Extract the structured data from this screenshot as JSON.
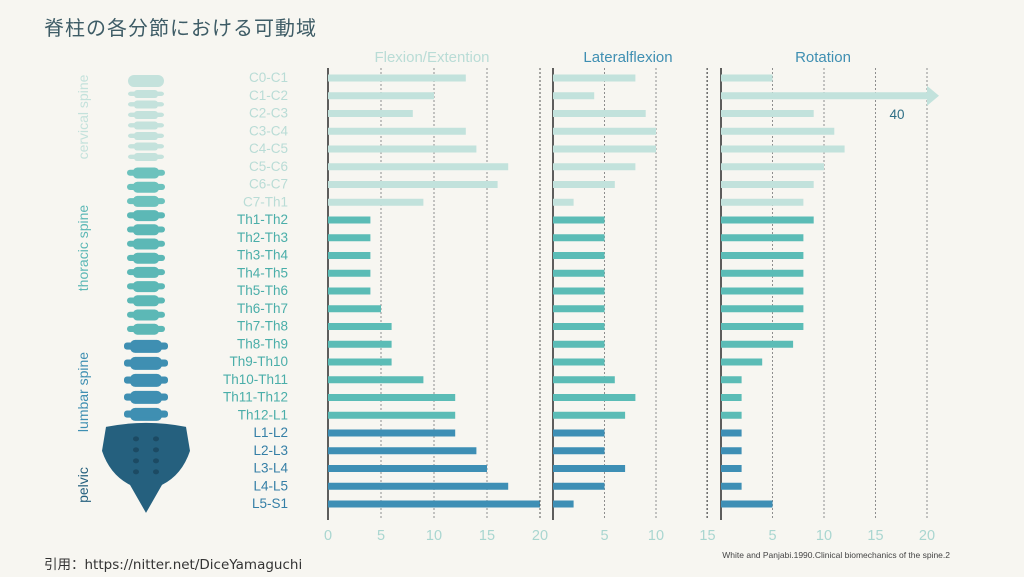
{
  "title": "脊柱の各分節における可動域",
  "citation": "引用：https://nitter.net/DiceYamaguchi",
  "source": "White and Panjabi.1990.Clinical biomechanics of the spine.2",
  "regions": [
    {
      "name": "cervical spine",
      "color": "#c4e2dc"
    },
    {
      "name": "thoracic spine",
      "color": "#5cb8b6"
    },
    {
      "name": "lumbar spine",
      "color": "#3f8fb2"
    },
    {
      "name": "pelvic",
      "color": "#25607e"
    }
  ],
  "colors": {
    "cervical": "#c2e2dc",
    "thoracic": "#5bbcb6",
    "lumbar": "#3e8fb5",
    "axis": "#1c1c1c"
  },
  "chart_data": {
    "type": "bar",
    "categories": [
      "C0-C1",
      "C1-C2",
      "C2-C3",
      "C3-C4",
      "C4-C5",
      "C5-C6",
      "C6-C7",
      "C7-Th1",
      "Th1-Th2",
      "Th2-Th3",
      "Th3-Th4",
      "Th4-Th5",
      "Th5-Th6",
      "Th6-Th7",
      "Th7-Th8",
      "Th8-Th9",
      "Th9-Th10",
      "Th10-Th11",
      "Th11-Th12",
      "Th12-L1",
      "L1-L2",
      "L2-L3",
      "L3-L4",
      "L4-L5",
      "L5-S1"
    ],
    "category_region": [
      "cervical",
      "cervical",
      "cervical",
      "cervical",
      "cervical",
      "cervical",
      "cervical",
      "cervical",
      "thoracic",
      "thoracic",
      "thoracic",
      "thoracic",
      "thoracic",
      "thoracic",
      "thoracic",
      "thoracic",
      "thoracic",
      "thoracic",
      "thoracic",
      "thoracic",
      "lumbar",
      "lumbar",
      "lumbar",
      "lumbar",
      "lumbar"
    ],
    "panels": [
      {
        "title": "Flexion/Extention",
        "xlim": [
          0,
          20
        ],
        "ticks": [
          0,
          5,
          10,
          15,
          20
        ],
        "values": [
          13,
          10,
          8,
          13,
          14,
          17,
          16,
          9,
          4,
          4,
          4,
          4,
          4,
          5,
          6,
          6,
          6,
          9,
          12,
          12,
          12,
          14,
          15,
          17,
          20
        ]
      },
      {
        "title": "Lateralflexion",
        "xlim": [
          0,
          15
        ],
        "ticks": [
          5,
          10,
          15
        ],
        "values": [
          8,
          4,
          9,
          10,
          10,
          8,
          6,
          2,
          5,
          5,
          5,
          5,
          5,
          5,
          5,
          5,
          5,
          6,
          8,
          7,
          5,
          5,
          7,
          5,
          2
        ]
      },
      {
        "title": "Rotation",
        "xlim": [
          0,
          20
        ],
        "ticks": [
          5,
          10,
          15,
          20
        ],
        "values": [
          5,
          40,
          9,
          11,
          12,
          10,
          9,
          8,
          9,
          8,
          8,
          8,
          8,
          8,
          8,
          7,
          4,
          2,
          2,
          2,
          2,
          2,
          2,
          2,
          5
        ],
        "annotation": "40"
      }
    ]
  }
}
